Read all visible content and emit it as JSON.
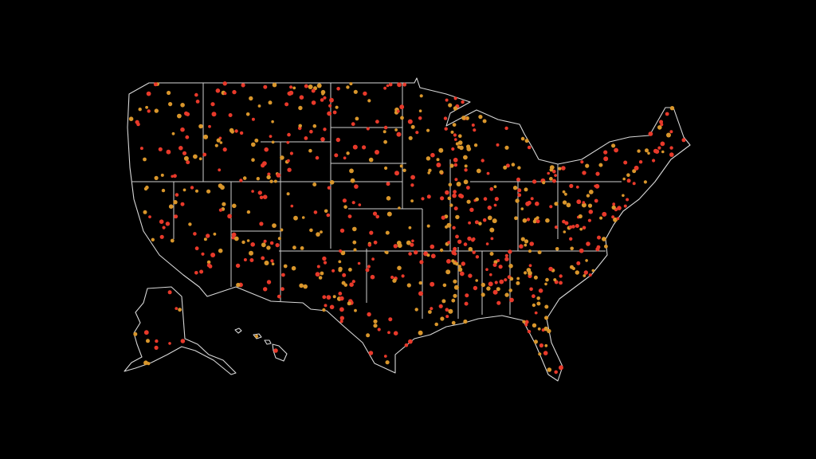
{
  "map": {
    "point_colors": [
      "#e8392a",
      "#d9962b"
    ]
  }
}
